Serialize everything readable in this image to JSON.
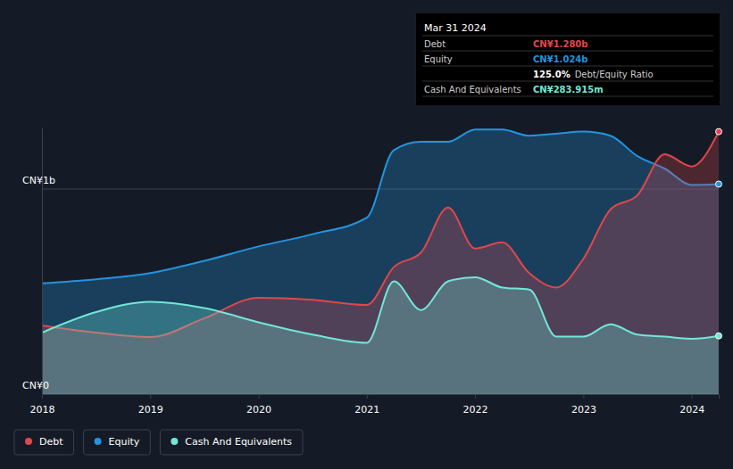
{
  "chart_data": {
    "type": "area",
    "x": [
      2018,
      2018.5,
      2019,
      2019.5,
      2020,
      2020.5,
      2021,
      2021.25,
      2021.5,
      2021.75,
      2022,
      2022.25,
      2022.5,
      2022.75,
      2023,
      2023.25,
      2023.5,
      2023.75,
      2024,
      2024.25
    ],
    "series": [
      {
        "name": "Debt",
        "color": "#e0474c",
        "values": [
          0.335,
          0.3,
          0.278,
          0.37,
          0.47,
          0.46,
          0.435,
          0.62,
          0.69,
          0.91,
          0.71,
          0.74,
          0.59,
          0.52,
          0.66,
          0.9,
          0.97,
          1.17,
          1.11,
          1.28
        ]
      },
      {
        "name": "Equity",
        "color": "#2394df",
        "values": [
          0.54,
          0.56,
          0.59,
          0.65,
          0.72,
          0.78,
          0.86,
          1.19,
          1.23,
          1.23,
          1.29,
          1.29,
          1.26,
          1.27,
          1.28,
          1.26,
          1.16,
          1.1,
          1.02,
          1.024
        ]
      },
      {
        "name": "Cash And Equivalents",
        "color": "#71e7d6",
        "values": [
          0.3,
          0.4,
          0.45,
          0.42,
          0.35,
          0.29,
          0.25,
          0.55,
          0.41,
          0.55,
          0.57,
          0.52,
          0.51,
          0.28,
          0.28,
          0.34,
          0.29,
          0.28,
          0.27,
          0.284
        ]
      }
    ],
    "xlim": [
      2018,
      2024.25
    ],
    "xticks": [
      2018,
      2019,
      2020,
      2021,
      2022,
      2023,
      2024
    ],
    "ylim": [
      0,
      1.3
    ],
    "yticks": [
      {
        "value": 0,
        "label": "CN¥0"
      },
      {
        "value": 1,
        "label": "CN¥1b"
      }
    ],
    "grid": true,
    "legend": "bottom",
    "tooltip": {
      "date": "Mar 31 2024",
      "rows": [
        {
          "label": "Debt",
          "value": "CN¥1.280b"
        },
        {
          "label": "Equity",
          "value": "CN¥1.024b"
        },
        {
          "label": "Cash And Equivalents",
          "value": "CN¥283.915m"
        }
      ],
      "ratio": {
        "value": "125.0%",
        "label": "Debt/Equity Ratio"
      }
    }
  }
}
